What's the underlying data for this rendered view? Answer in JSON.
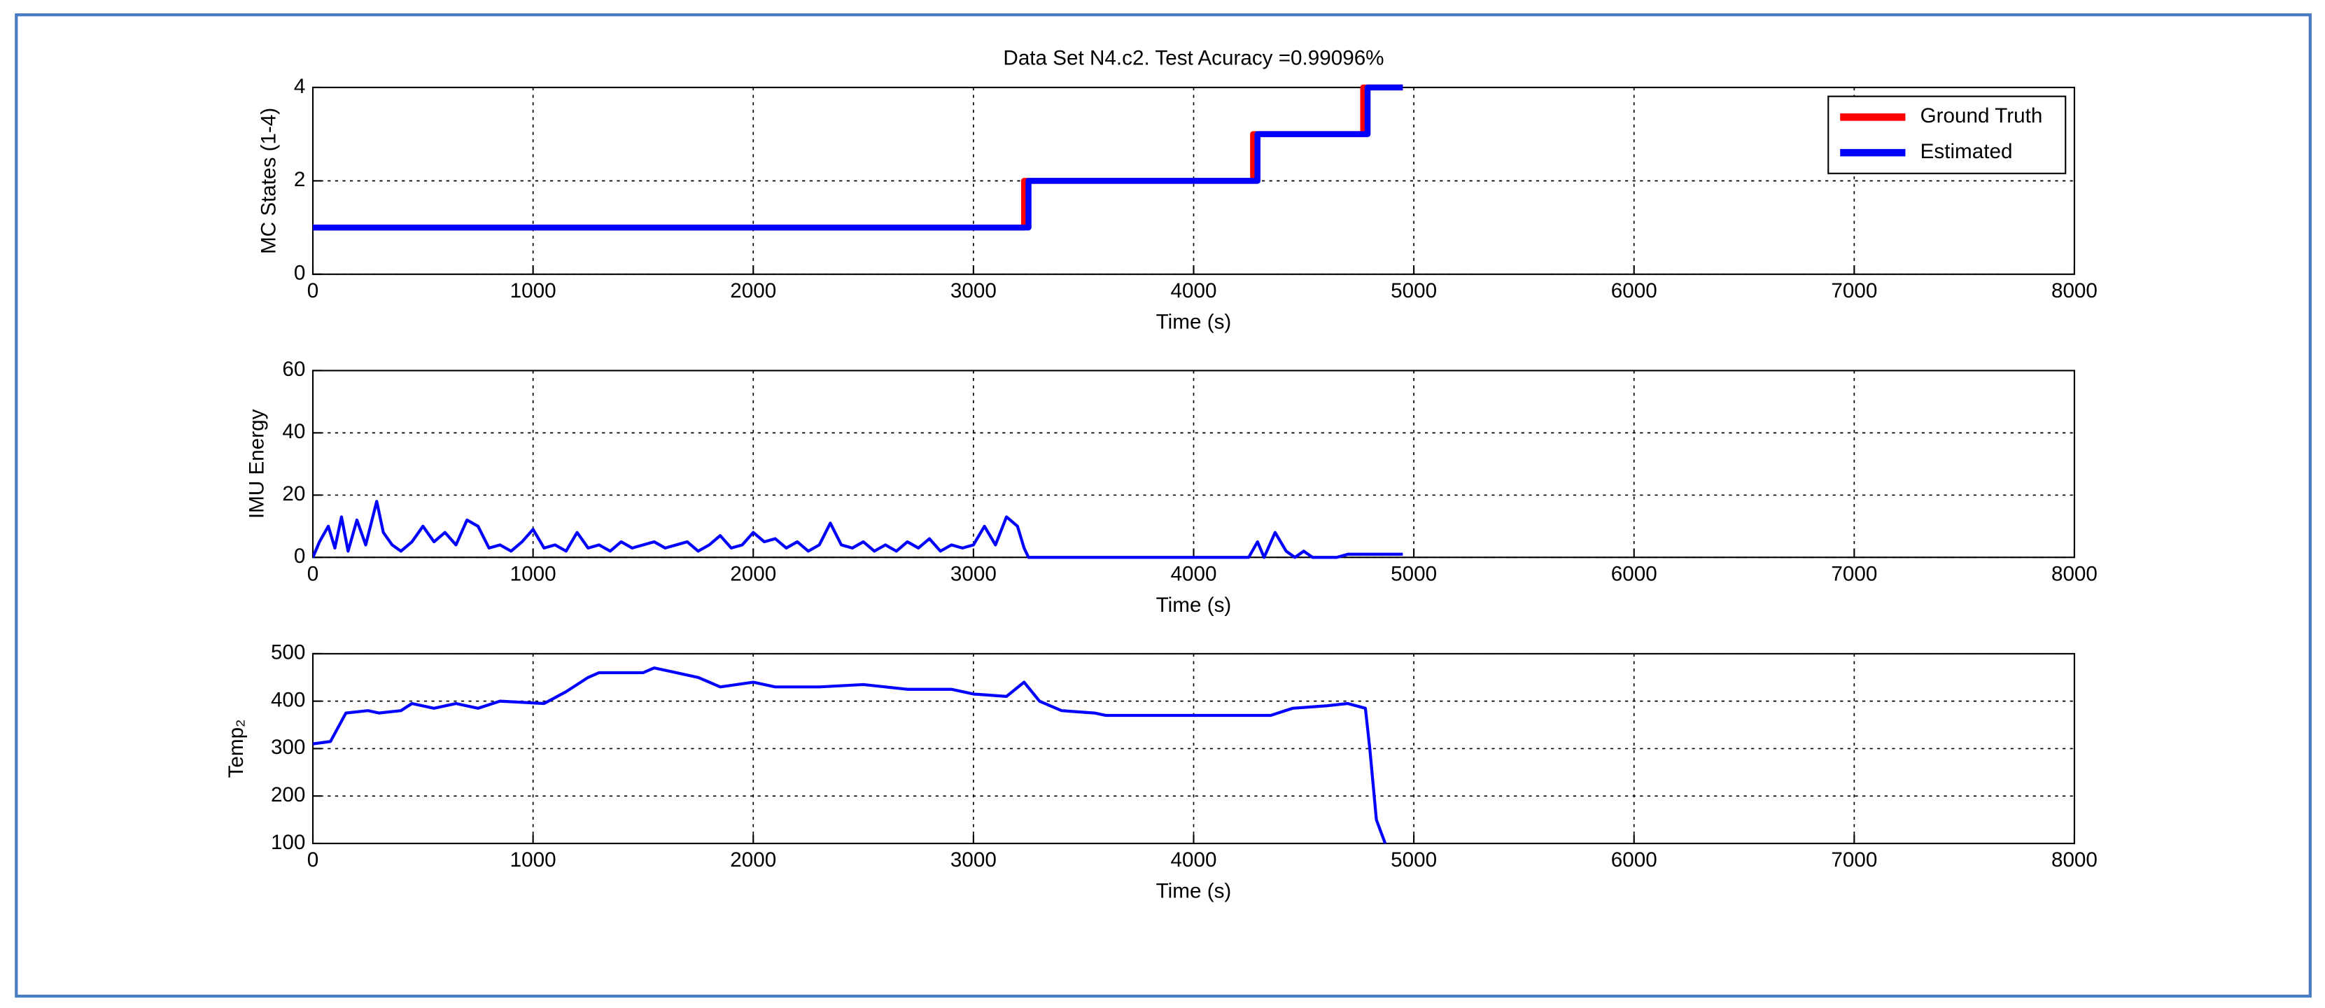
{
  "chart_data": [
    {
      "type": "line",
      "title": "Data Set N4.c2. Test Acuracy =0.99096%",
      "xlabel": "Time (s)",
      "ylabel": "MC States (1-4)",
      "xlim": [
        0,
        8000
      ],
      "xticks": [
        0,
        1000,
        2000,
        3000,
        4000,
        5000,
        6000,
        7000,
        8000
      ],
      "ylim": [
        0,
        4
      ],
      "yticks": [
        0,
        2,
        4
      ],
      "grid": true,
      "legend": "upper-right",
      "series": [
        {
          "name": "Ground Truth",
          "color": "#ff0000",
          "x": [
            0,
            3230,
            3230,
            4270,
            4270,
            4770,
            4770,
            4950
          ],
          "values": [
            1,
            1,
            2,
            2,
            3,
            3,
            4,
            4
          ]
        },
        {
          "name": "Estimated",
          "color": "#0000ff",
          "x": [
            0,
            3250,
            3250,
            4290,
            4290,
            4790,
            4790,
            4950
          ],
          "values": [
            1,
            1,
            2,
            2,
            3,
            3,
            4,
            4
          ]
        }
      ]
    },
    {
      "type": "line",
      "xlabel": "Time (s)",
      "ylabel": "IMU Energy",
      "color": "#0000ff",
      "xlim": [
        0,
        8000
      ],
      "xticks": [
        0,
        1000,
        2000,
        3000,
        4000,
        5000,
        6000,
        7000,
        8000
      ],
      "ylim": [
        0,
        60
      ],
      "yticks": [
        0,
        20,
        40,
        60
      ],
      "grid": true,
      "x": [
        0,
        30,
        70,
        100,
        130,
        160,
        200,
        240,
        290,
        320,
        360,
        400,
        450,
        500,
        550,
        600,
        650,
        700,
        750,
        800,
        850,
        900,
        950,
        1000,
        1050,
        1100,
        1150,
        1200,
        1250,
        1300,
        1350,
        1400,
        1450,
        1500,
        1550,
        1600,
        1650,
        1700,
        1750,
        1800,
        1850,
        1900,
        1950,
        2000,
        2050,
        2100,
        2150,
        2200,
        2250,
        2300,
        2350,
        2400,
        2450,
        2500,
        2550,
        2600,
        2650,
        2700,
        2750,
        2800,
        2850,
        2900,
        2950,
        3000,
        3050,
        3100,
        3150,
        3200,
        3230,
        3250,
        4250,
        4290,
        4320,
        4370,
        4420,
        4460,
        4500,
        4540,
        4650,
        4700,
        4950
      ],
      "values": [
        0,
        5,
        10,
        3,
        13,
        2,
        12,
        4,
        18,
        8,
        4,
        2,
        5,
        10,
        5,
        8,
        4,
        12,
        10,
        3,
        4,
        2,
        5,
        9,
        3,
        4,
        2,
        8,
        3,
        4,
        2,
        5,
        3,
        4,
        5,
        3,
        4,
        5,
        2,
        4,
        7,
        3,
        4,
        8,
        5,
        6,
        3,
        5,
        2,
        4,
        11,
        4,
        3,
        5,
        2,
        4,
        2,
        5,
        3,
        6,
        2,
        4,
        3,
        4,
        10,
        4,
        13,
        10,
        3,
        0,
        0,
        5,
        0,
        8,
        2,
        0,
        2,
        0,
        0,
        1,
        1
      ]
    },
    {
      "type": "line",
      "xlabel": "Time (s)",
      "ylabel": "Temp₂",
      "color": "#0000ff",
      "xlim": [
        0,
        8000
      ],
      "xticks": [
        0,
        1000,
        2000,
        3000,
        4000,
        5000,
        6000,
        7000,
        8000
      ],
      "ylim": [
        100,
        500
      ],
      "yticks": [
        100,
        200,
        300,
        400,
        500
      ],
      "grid": true,
      "x": [
        0,
        80,
        150,
        250,
        300,
        400,
        450,
        550,
        650,
        750,
        850,
        1050,
        1150,
        1250,
        1300,
        1500,
        1550,
        1650,
        1750,
        1850,
        2000,
        2100,
        2300,
        2500,
        2600,
        2700,
        2900,
        3000,
        3150,
        3230,
        3300,
        3400,
        3550,
        3600,
        4350,
        4450,
        4600,
        4700,
        4780,
        4800,
        4830,
        4870
      ],
      "values": [
        310,
        315,
        375,
        380,
        375,
        380,
        395,
        385,
        395,
        385,
        400,
        395,
        420,
        450,
        460,
        460,
        470,
        460,
        450,
        430,
        440,
        430,
        430,
        435,
        430,
        425,
        425,
        415,
        410,
        440,
        400,
        380,
        375,
        370,
        370,
        385,
        390,
        395,
        385,
        300,
        150,
        100
      ]
    }
  ]
}
